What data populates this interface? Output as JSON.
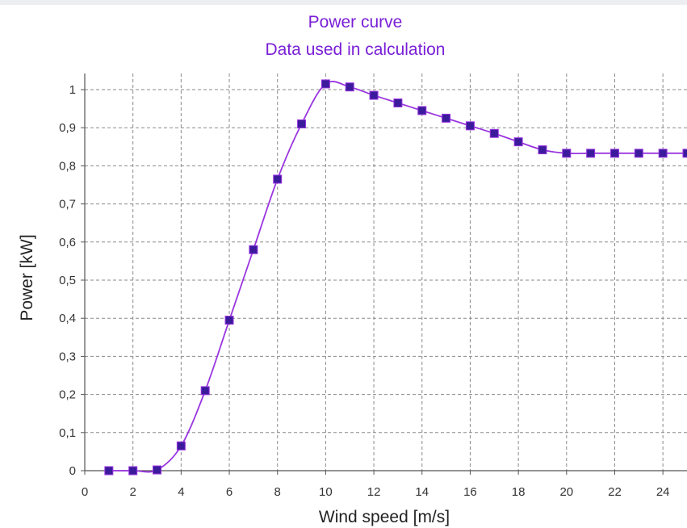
{
  "chart_data": {
    "type": "line",
    "title": "Power curve",
    "subtitle": "Data used in calculation",
    "xlabel": "Wind speed [m/s]",
    "ylabel": "Power [kW]",
    "xlim": [
      0,
      25
    ],
    "ylim": [
      0,
      1
    ],
    "x_ticks": [
      "0",
      "2",
      "4",
      "6",
      "8",
      "10",
      "12",
      "14",
      "16",
      "18",
      "20",
      "22",
      "24"
    ],
    "y_ticks": [
      "0",
      "0,1",
      "0,2",
      "0,3",
      "0,4",
      "0,5",
      "0,6",
      "0,7",
      "0,8",
      "0,9",
      "1"
    ],
    "grid": true,
    "colors": {
      "line": "#9a35e0",
      "marker": "#3b1a9c",
      "title": "#7a1fd6"
    },
    "series": [
      {
        "x": [
          1,
          2,
          3,
          4,
          5,
          6,
          7,
          8,
          9,
          10,
          11,
          12,
          13,
          14,
          15,
          16,
          17,
          18,
          19,
          20,
          21,
          22,
          23,
          24,
          25
        ],
        "y": [
          0,
          0,
          0.002,
          0.065,
          0.21,
          0.395,
          0.58,
          0.765,
          0.91,
          1.015,
          1.007,
          0.985,
          0.965,
          0.945,
          0.925,
          0.905,
          0.885,
          0.863,
          0.842,
          0.833,
          0.833,
          0.833,
          0.833,
          0.833,
          0.833
        ]
      }
    ]
  }
}
